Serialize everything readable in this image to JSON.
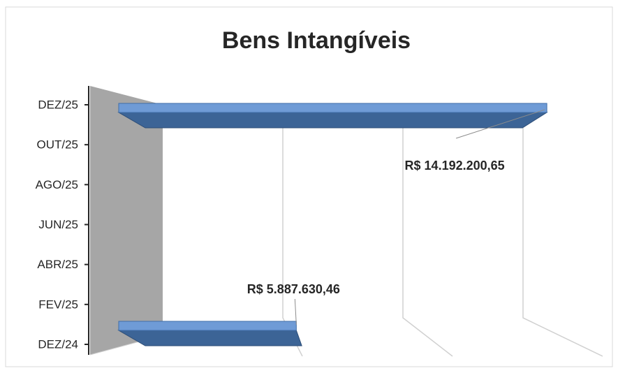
{
  "chart_data": {
    "type": "bar3d_horizontal",
    "title": "Bens Intangíveis",
    "categories": [
      "DEZ/24",
      "FEV/25",
      "ABR/25",
      "JUN/25",
      "AGO/25",
      "OUT/25",
      "DEZ/25"
    ],
    "values": [
      5887630.46,
      null,
      null,
      null,
      null,
      null,
      14192200.65
    ],
    "value_labels": [
      "R$ 5.887.630,46",
      null,
      null,
      null,
      null,
      null,
      "R$ 14.192.200,65"
    ],
    "color": "#4f81bd",
    "xlim": [
      0,
      15000000
    ],
    "xticks": [
      0,
      5000000,
      10000000,
      15000000
    ],
    "grid": true
  }
}
